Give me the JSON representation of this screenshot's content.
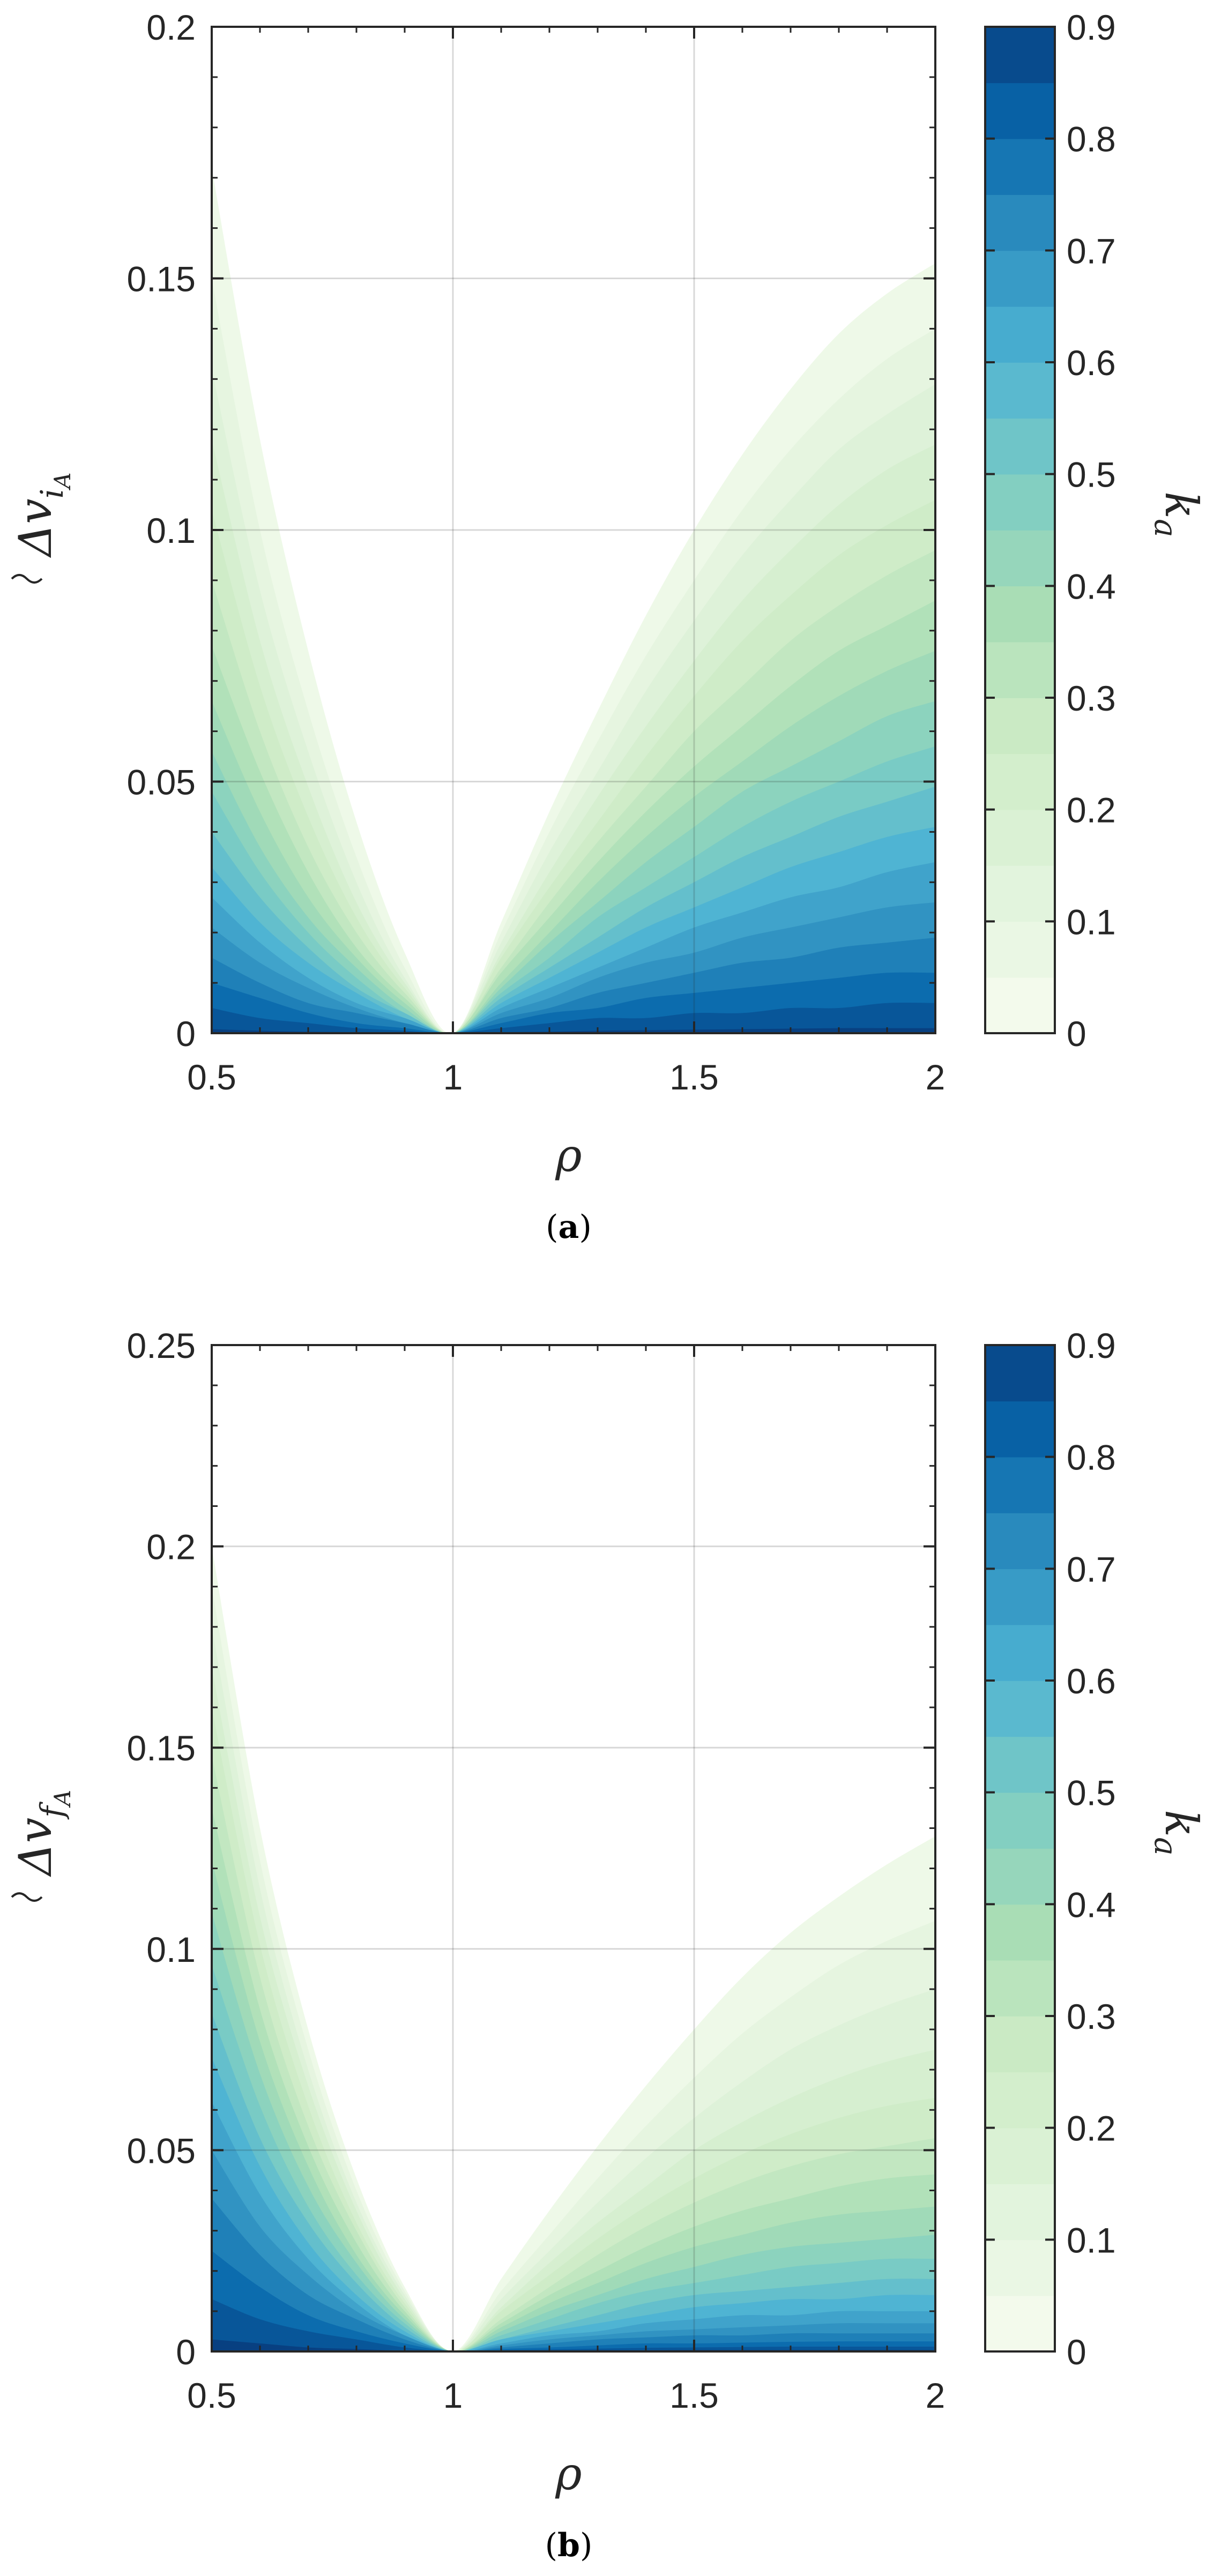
{
  "chart_data": [
    {
      "type": "contourf",
      "caption_prefix": "(",
      "caption_letter": "a",
      "caption_suffix": ")",
      "xlabel": "ρ",
      "ylabel_base": "Δv",
      "ylabel_sub": "i",
      "ylabel_subsub": "A",
      "colorbar_label": "k",
      "colorbar_label_sub": "a",
      "xlim": [
        0.5,
        2
      ],
      "ylim": [
        0,
        0.2
      ],
      "xticks": [
        0.5,
        1,
        1.5,
        2
      ],
      "xtick_labels": [
        "0.5",
        "1",
        "1.5",
        "2"
      ],
      "yticks": [
        0,
        0.05,
        0.1,
        0.15,
        0.2
      ],
      "ytick_labels": [
        "0",
        "0.05",
        "0.1",
        "0.15",
        "0.2"
      ],
      "colorbar_ticks": [
        0,
        0.1,
        0.2,
        0.3,
        0.4,
        0.5,
        0.6,
        0.7,
        0.8,
        0.9
      ],
      "colorbar_tick_labels": [
        "0",
        "0.1",
        "0.2",
        "0.3",
        "0.4",
        "0.5",
        "0.6",
        "0.7",
        "0.8",
        "0.9"
      ],
      "colorbar_range": [
        0,
        0.9
      ],
      "grid": true,
      "colormap": "GnBu",
      "levels": [
        0.05,
        0.1,
        0.15,
        0.2,
        0.25,
        0.3,
        0.35,
        0.4,
        0.45,
        0.5,
        0.55,
        0.6,
        0.65,
        0.7,
        0.75,
        0.8,
        0.85,
        0.9
      ],
      "x": [
        0.5,
        0.6,
        0.7,
        0.8,
        0.9,
        1.0,
        1.1,
        1.2,
        1.3,
        1.4,
        1.5,
        1.6,
        1.7,
        1.8,
        1.9,
        2.0
      ],
      "contours": [
        {
          "level": 0.05,
          "y": [
            0.172,
            0.118,
            0.076,
            0.042,
            0.016,
            0.0,
            0.022,
            0.044,
            0.064,
            0.083,
            0.1,
            0.115,
            0.128,
            0.139,
            0.147,
            0.153
          ]
        },
        {
          "level": 0.1,
          "y": [
            0.15,
            0.1,
            0.064,
            0.035,
            0.013,
            0.0,
            0.02,
            0.04,
            0.058,
            0.075,
            0.09,
            0.104,
            0.116,
            0.126,
            0.134,
            0.14
          ]
        },
        {
          "level": 0.15,
          "y": [
            0.132,
            0.088,
            0.056,
            0.03,
            0.011,
            0.0,
            0.018,
            0.036,
            0.052,
            0.068,
            0.082,
            0.095,
            0.106,
            0.116,
            0.123,
            0.129
          ]
        },
        {
          "level": 0.2,
          "y": [
            0.118,
            0.078,
            0.049,
            0.026,
            0.01,
            0.0,
            0.016,
            0.032,
            0.047,
            0.061,
            0.074,
            0.086,
            0.096,
            0.105,
            0.112,
            0.117
          ]
        },
        {
          "level": 0.25,
          "y": [
            0.104,
            0.069,
            0.043,
            0.023,
            0.009,
            0.0,
            0.015,
            0.029,
            0.042,
            0.055,
            0.067,
            0.078,
            0.087,
            0.095,
            0.101,
            0.106
          ]
        },
        {
          "level": 0.3,
          "y": [
            0.09,
            0.06,
            0.037,
            0.02,
            0.008,
            0.0,
            0.013,
            0.026,
            0.038,
            0.049,
            0.06,
            0.069,
            0.078,
            0.085,
            0.091,
            0.096
          ]
        },
        {
          "level": 0.35,
          "y": [
            0.077,
            0.052,
            0.032,
            0.017,
            0.007,
            0.0,
            0.012,
            0.023,
            0.034,
            0.044,
            0.053,
            0.061,
            0.069,
            0.076,
            0.081,
            0.086
          ]
        },
        {
          "level": 0.4,
          "y": [
            0.066,
            0.044,
            0.027,
            0.015,
            0.006,
            0.0,
            0.01,
            0.02,
            0.03,
            0.039,
            0.047,
            0.054,
            0.061,
            0.067,
            0.072,
            0.076
          ]
        },
        {
          "level": 0.45,
          "y": [
            0.056,
            0.037,
            0.023,
            0.013,
            0.005,
            0.0,
            0.009,
            0.018,
            0.026,
            0.034,
            0.041,
            0.048,
            0.053,
            0.058,
            0.063,
            0.066
          ]
        },
        {
          "level": 0.5,
          "y": [
            0.048,
            0.032,
            0.02,
            0.011,
            0.004,
            0.0,
            0.008,
            0.015,
            0.023,
            0.029,
            0.035,
            0.041,
            0.046,
            0.05,
            0.054,
            0.057
          ]
        },
        {
          "level": 0.55,
          "y": [
            0.04,
            0.027,
            0.017,
            0.009,
            0.004,
            0.0,
            0.007,
            0.013,
            0.019,
            0.025,
            0.03,
            0.035,
            0.039,
            0.043,
            0.046,
            0.049
          ]
        },
        {
          "level": 0.6,
          "y": [
            0.033,
            0.022,
            0.014,
            0.008,
            0.003,
            0.0,
            0.006,
            0.011,
            0.016,
            0.021,
            0.025,
            0.029,
            0.033,
            0.036,
            0.039,
            0.041
          ]
        },
        {
          "level": 0.65,
          "y": [
            0.027,
            0.018,
            0.011,
            0.006,
            0.003,
            0.0,
            0.005,
            0.009,
            0.013,
            0.017,
            0.021,
            0.024,
            0.027,
            0.029,
            0.032,
            0.034
          ]
        },
        {
          "level": 0.7,
          "y": [
            0.021,
            0.014,
            0.009,
            0.005,
            0.002,
            0.0,
            0.004,
            0.007,
            0.011,
            0.014,
            0.016,
            0.019,
            0.021,
            0.023,
            0.025,
            0.026
          ]
        },
        {
          "level": 0.75,
          "y": [
            0.015,
            0.01,
            0.006,
            0.004,
            0.002,
            0.0,
            0.003,
            0.005,
            0.008,
            0.01,
            0.012,
            0.014,
            0.015,
            0.017,
            0.018,
            0.019
          ]
        },
        {
          "level": 0.8,
          "y": [
            0.01,
            0.007,
            0.004,
            0.002,
            0.001,
            0.0,
            0.002,
            0.004,
            0.005,
            0.007,
            0.008,
            0.009,
            0.01,
            0.011,
            0.012,
            0.012
          ]
        },
        {
          "level": 0.85,
          "y": [
            0.005,
            0.003,
            0.002,
            0.001,
            0.0005,
            0.0,
            0.001,
            0.002,
            0.003,
            0.003,
            0.004,
            0.004,
            0.005,
            0.005,
            0.006,
            0.006
          ]
        },
        {
          "level": 0.9,
          "y": [
            0.0008,
            0.0005,
            0.0003,
            0.0002,
            0.0001,
            0.0,
            0.0002,
            0.0003,
            0.0005,
            0.0006,
            0.0007,
            0.0008,
            0.0009,
            0.001,
            0.001,
            0.001
          ]
        }
      ]
    },
    {
      "type": "contourf",
      "caption_prefix": "(",
      "caption_letter": "b",
      "caption_suffix": ")",
      "xlabel": "ρ",
      "ylabel_base": "Δv",
      "ylabel_sub": "f",
      "ylabel_subsub": "A",
      "colorbar_label": "k",
      "colorbar_label_sub": "a",
      "xlim": [
        0.5,
        2
      ],
      "ylim": [
        0,
        0.25
      ],
      "xticks": [
        0.5,
        1,
        1.5,
        2
      ],
      "xtick_labels": [
        "0.5",
        "1",
        "1.5",
        "2"
      ],
      "yticks": [
        0,
        0.05,
        0.1,
        0.15,
        0.2,
        0.25
      ],
      "ytick_labels": [
        "0",
        "0.05",
        "0.1",
        "0.15",
        "0.2",
        "0.25"
      ],
      "colorbar_ticks": [
        0,
        0.1,
        0.2,
        0.3,
        0.4,
        0.5,
        0.6,
        0.7,
        0.8,
        0.9
      ],
      "colorbar_tick_labels": [
        "0",
        "0.1",
        "0.2",
        "0.3",
        "0.4",
        "0.5",
        "0.6",
        "0.7",
        "0.8",
        "0.9"
      ],
      "colorbar_range": [
        0,
        0.9
      ],
      "grid": true,
      "colormap": "GnBu",
      "levels": [
        0.05,
        0.1,
        0.15,
        0.2,
        0.25,
        0.3,
        0.35,
        0.4,
        0.45,
        0.5,
        0.55,
        0.6,
        0.65,
        0.7,
        0.75,
        0.8,
        0.85,
        0.9
      ],
      "x": [
        0.5,
        0.6,
        0.7,
        0.8,
        0.9,
        1.0,
        1.1,
        1.2,
        1.3,
        1.4,
        1.5,
        1.6,
        1.7,
        1.8,
        1.9,
        2.0
      ],
      "contours": [
        {
          "level": 0.05,
          "y": [
            0.2,
            0.13,
            0.08,
            0.043,
            0.016,
            0.0,
            0.018,
            0.035,
            0.051,
            0.066,
            0.08,
            0.093,
            0.104,
            0.113,
            0.121,
            0.128
          ]
        },
        {
          "level": 0.1,
          "y": [
            0.19,
            0.122,
            0.075,
            0.04,
            0.015,
            0.0,
            0.015,
            0.029,
            0.043,
            0.056,
            0.068,
            0.079,
            0.088,
            0.096,
            0.102,
            0.107
          ]
        },
        {
          "level": 0.15,
          "y": [
            0.18,
            0.115,
            0.07,
            0.037,
            0.014,
            0.0,
            0.013,
            0.025,
            0.037,
            0.048,
            0.058,
            0.067,
            0.075,
            0.081,
            0.086,
            0.09
          ]
        },
        {
          "level": 0.2,
          "y": [
            0.17,
            0.108,
            0.066,
            0.035,
            0.013,
            0.0,
            0.011,
            0.022,
            0.032,
            0.041,
            0.05,
            0.057,
            0.063,
            0.068,
            0.072,
            0.075
          ]
        },
        {
          "level": 0.25,
          "y": [
            0.16,
            0.101,
            0.061,
            0.032,
            0.012,
            0.0,
            0.01,
            0.019,
            0.028,
            0.036,
            0.043,
            0.049,
            0.054,
            0.058,
            0.061,
            0.063
          ]
        },
        {
          "level": 0.3,
          "y": [
            0.148,
            0.093,
            0.056,
            0.03,
            0.011,
            0.0,
            0.008,
            0.016,
            0.024,
            0.031,
            0.037,
            0.042,
            0.046,
            0.049,
            0.051,
            0.053
          ]
        },
        {
          "level": 0.35,
          "y": [
            0.135,
            0.085,
            0.051,
            0.027,
            0.01,
            0.0,
            0.007,
            0.014,
            0.02,
            0.026,
            0.031,
            0.035,
            0.038,
            0.041,
            0.043,
            0.044
          ]
        },
        {
          "level": 0.4,
          "y": [
            0.122,
            0.077,
            0.046,
            0.024,
            0.009,
            0.0,
            0.006,
            0.012,
            0.017,
            0.022,
            0.026,
            0.029,
            0.032,
            0.034,
            0.035,
            0.036
          ]
        },
        {
          "level": 0.45,
          "y": [
            0.109,
            0.069,
            0.041,
            0.022,
            0.008,
            0.0,
            0.005,
            0.01,
            0.014,
            0.018,
            0.021,
            0.024,
            0.026,
            0.027,
            0.028,
            0.029
          ]
        },
        {
          "level": 0.5,
          "y": [
            0.096,
            0.061,
            0.036,
            0.019,
            0.007,
            0.0,
            0.004,
            0.008,
            0.012,
            0.015,
            0.017,
            0.019,
            0.021,
            0.022,
            0.023,
            0.023
          ]
        },
        {
          "level": 0.55,
          "y": [
            0.084,
            0.053,
            0.032,
            0.017,
            0.006,
            0.0,
            0.003,
            0.006,
            0.009,
            0.012,
            0.014,
            0.015,
            0.016,
            0.017,
            0.018,
            0.018
          ]
        },
        {
          "level": 0.6,
          "y": [
            0.073,
            0.046,
            0.027,
            0.014,
            0.005,
            0.0,
            0.003,
            0.005,
            0.007,
            0.009,
            0.011,
            0.012,
            0.013,
            0.013,
            0.014,
            0.014
          ]
        },
        {
          "level": 0.65,
          "y": [
            0.062,
            0.039,
            0.023,
            0.012,
            0.004,
            0.0,
            0.002,
            0.004,
            0.005,
            0.007,
            0.008,
            0.009,
            0.009,
            0.01,
            0.01,
            0.01
          ]
        },
        {
          "level": 0.7,
          "y": [
            0.05,
            0.031,
            0.019,
            0.01,
            0.004,
            0.0,
            0.0015,
            0.003,
            0.004,
            0.005,
            0.0055,
            0.006,
            0.0065,
            0.007,
            0.007,
            0.007
          ]
        },
        {
          "level": 0.75,
          "y": [
            0.038,
            0.024,
            0.014,
            0.008,
            0.003,
            0.0,
            0.001,
            0.002,
            0.003,
            0.0035,
            0.004,
            0.004,
            0.0045,
            0.0045,
            0.0045,
            0.0045
          ]
        },
        {
          "level": 0.8,
          "y": [
            0.025,
            0.016,
            0.009,
            0.005,
            0.002,
            0.0,
            0.0006,
            0.001,
            0.0015,
            0.002,
            0.002,
            0.0022,
            0.0024,
            0.0025,
            0.0025,
            0.0025
          ]
        },
        {
          "level": 0.85,
          "y": [
            0.013,
            0.008,
            0.005,
            0.003,
            0.001,
            0.0,
            0.0003,
            0.0005,
            0.0007,
            0.0009,
            0.001,
            0.0011,
            0.0012,
            0.0012,
            0.0012,
            0.0012
          ]
        },
        {
          "level": 0.9,
          "y": [
            0.003,
            0.002,
            0.001,
            0.0006,
            0.0002,
            0.0,
            0.0001,
            0.0002,
            0.0003,
            0.0003,
            0.0004,
            0.0004,
            0.0004,
            0.0004,
            0.0004,
            0.0004
          ]
        }
      ]
    }
  ]
}
